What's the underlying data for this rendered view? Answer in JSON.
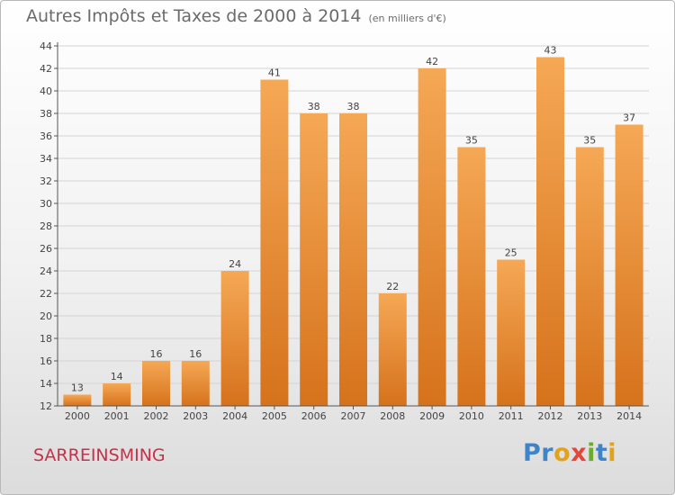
{
  "title": "Autres Impôts et Taxes de 2000 à 2014",
  "unit": "(en milliers d'€)",
  "town": "SARREINSMING",
  "logo": {
    "letters": [
      "P",
      "r",
      "o",
      "x",
      "i",
      "t",
      "i"
    ],
    "colors": [
      "#3f84c8",
      "#3f84c8",
      "#e2a21a",
      "#e4463b",
      "#6dab2e",
      "#3f84c8",
      "#e2a21a"
    ]
  },
  "colors": {
    "bar_light": "#f5a855",
    "bar_dark": "#d6721c",
    "axis": "#555555",
    "grid": "#d4d4d4"
  },
  "chart_data": {
    "type": "bar",
    "categories": [
      "2000",
      "2001",
      "2002",
      "2003",
      "2004",
      "2005",
      "2006",
      "2007",
      "2008",
      "2009",
      "2010",
      "2011",
      "2012",
      "2013",
      "2014"
    ],
    "values": [
      13,
      14,
      16,
      16,
      24,
      41,
      38,
      38,
      22,
      42,
      35,
      25,
      43,
      35,
      37
    ],
    "ylim": [
      12,
      44
    ],
    "yticks": [
      12,
      14,
      16,
      18,
      20,
      22,
      24,
      26,
      28,
      30,
      32,
      34,
      36,
      38,
      40,
      42,
      44
    ],
    "grid": true,
    "data_labels": true
  }
}
